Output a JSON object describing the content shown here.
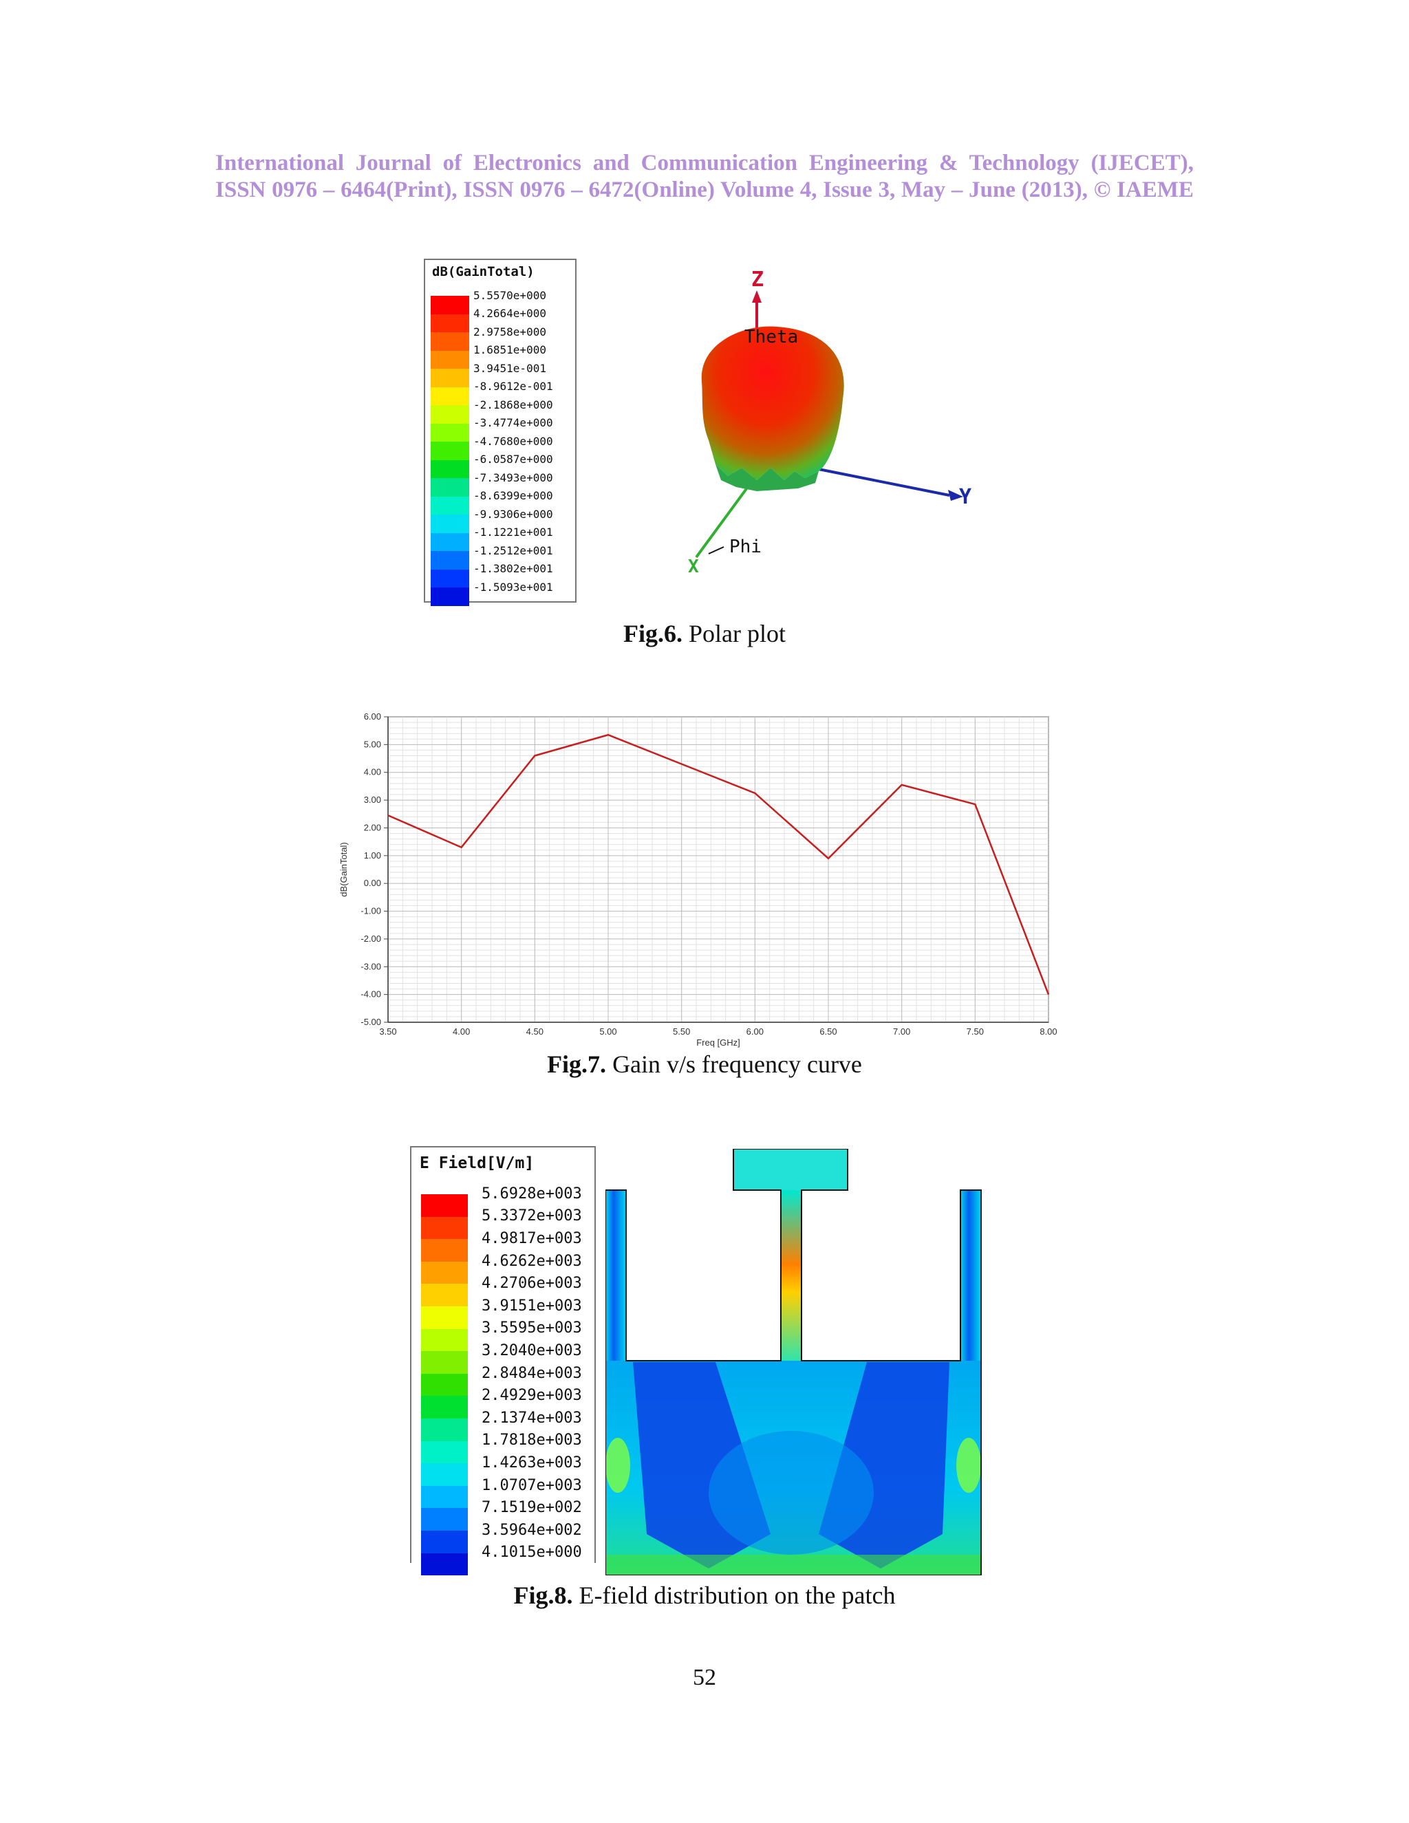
{
  "header": {
    "line1": "International Journal of Electronics and Communication Engineering & Technology (IJECET),",
    "line2": "ISSN 0976 – 6464(Print), ISSN 0976 – 6472(Online) Volume 4, Issue 3, May – June (2013), © IAEME"
  },
  "fig6": {
    "label": "Fig.6.",
    "caption": " Polar plot",
    "legend_title": "dB(GainTotal)",
    "legend_values": [
      "5.5570e+000",
      "4.2664e+000",
      "2.9758e+000",
      "1.6851e+000",
      "3.9451e-001",
      "-8.9612e-001",
      "-2.1868e+000",
      "-3.4774e+000",
      "-4.7680e+000",
      "-6.0587e+000",
      "-7.3493e+000",
      "-8.6399e+000",
      "-9.9306e+000",
      "-1.1221e+001",
      "-1.2512e+001",
      "-1.3802e+001",
      "-1.5093e+001"
    ],
    "legend_colors": [
      "#ff0000",
      "#ff2a00",
      "#ff5a00",
      "#ff8c00",
      "#ffc000",
      "#ffee00",
      "#ccff00",
      "#8cff00",
      "#40ee00",
      "#00dd22",
      "#00e58a",
      "#00f0c8",
      "#00e0f0",
      "#00b0ff",
      "#0070ff",
      "#0038ff",
      "#0010e0"
    ],
    "axis_z": "Z",
    "axis_y": "Y",
    "axis_x": "X",
    "theta": "Theta",
    "phi": "Phi"
  },
  "fig7": {
    "label": "Fig.7.",
    "caption": " Gain v/s frequency curve",
    "chart_data": {
      "type": "line",
      "title": "",
      "xlabel": "Freq [GHz]",
      "ylabel": "dB(GainTotal)",
      "xlim": [
        3.5,
        8.0
      ],
      "ylim": [
        -5.0,
        6.0
      ],
      "x_ticks": [
        "3.50",
        "4.00",
        "4.50",
        "5.00",
        "5.50",
        "6.00",
        "6.50",
        "7.00",
        "7.50",
        "8.00"
      ],
      "y_ticks": [
        "6.00",
        "5.00",
        "4.00",
        "3.00",
        "2.00",
        "1.00",
        "0.00",
        "-1.00",
        "-2.00",
        "-3.00",
        "-4.00",
        "-5.00"
      ],
      "grid": true,
      "series": [
        {
          "color": "#c81e1e",
          "x": [
            3.5,
            4.0,
            4.5,
            5.0,
            5.5,
            6.0,
            6.5,
            7.0,
            7.5,
            8.0
          ],
          "y": [
            2.45,
            1.3,
            4.6,
            5.35,
            4.3,
            3.25,
            0.9,
            3.55,
            2.85,
            -4.0
          ]
        }
      ]
    }
  },
  "fig8": {
    "label": "Fig.8.",
    "caption": " E-field distribution on the patch",
    "legend_title": "E Field[V/m]",
    "legend_values": [
      "5.6928e+003",
      "5.3372e+003",
      "4.9817e+003",
      "4.6262e+003",
      "4.2706e+003",
      "3.9151e+003",
      "3.5595e+003",
      "3.2040e+003",
      "2.8484e+003",
      "2.4929e+003",
      "2.1374e+003",
      "1.7818e+003",
      "1.4263e+003",
      "1.0707e+003",
      "7.1519e+002",
      "3.5964e+002",
      "4.1015e+000"
    ],
    "legend_colors": [
      "#ff0000",
      "#ff3a00",
      "#ff7000",
      "#ffa000",
      "#ffd000",
      "#f0ff00",
      "#b8ff00",
      "#80f000",
      "#30e000",
      "#00e030",
      "#00e890",
      "#00f0c8",
      "#00e0ee",
      "#00b8ff",
      "#0080ff",
      "#0040f0",
      "#0010d8"
    ]
  },
  "page_number": "52"
}
